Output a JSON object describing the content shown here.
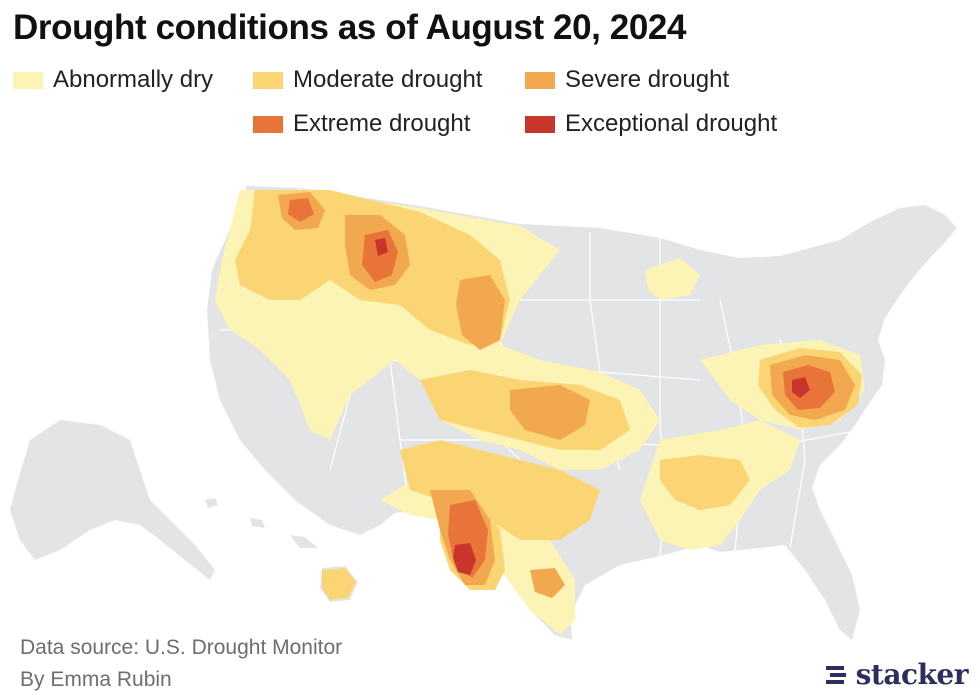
{
  "title": "Drought conditions as of August 20, 2024",
  "legend": [
    {
      "label": "Abnormally dry",
      "color": "#fcf4b4"
    },
    {
      "label": "Moderate drought",
      "color": "#fbd573"
    },
    {
      "label": "Severe drought",
      "color": "#f2a84e"
    },
    {
      "label": "Extreme drought",
      "color": "#e8743a"
    },
    {
      "label": "Exceptional drought",
      "color": "#c8352c"
    }
  ],
  "colors": {
    "land": "#e3e4e6",
    "border": "#ffffff"
  },
  "footer": {
    "source": "Data source: U.S. Drought Monitor",
    "byline": "By Emma Rubin"
  },
  "logo": {
    "text": "stacker",
    "icon": "stacker-logo-icon"
  }
}
